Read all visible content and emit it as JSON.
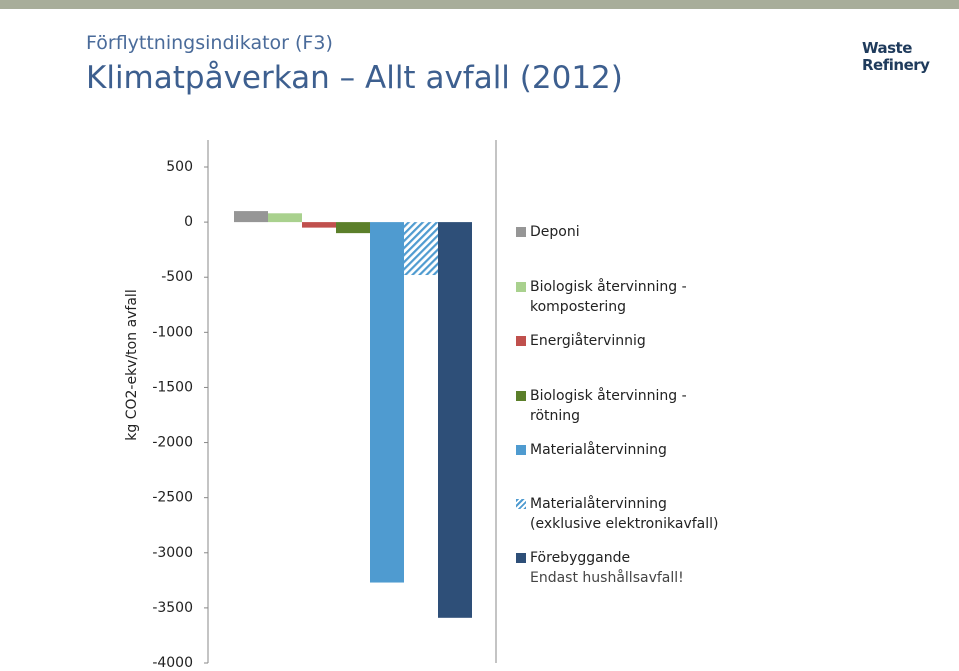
{
  "header": {
    "subtitle": "Förflyttningsindikator (F3)",
    "title": "Klimatpåverkan – Allt avfall (2012)",
    "logo_top": "Waste",
    "logo_bottom": "Refinery"
  },
  "chart_data": {
    "type": "bar",
    "y_label": "kg CO2-ekv/ton avfall",
    "series": [
      {
        "name": "Deponi",
        "color": "#969696",
        "values": [
          100
        ]
      },
      {
        "name": "Biologisk återvinning - kompostering",
        "color": "#a9d18e",
        "values": [
          80
        ]
      },
      {
        "name": "Energiåtervinnig",
        "color": "#c0504d",
        "values": [
          -50
        ]
      },
      {
        "name": "Biologisk återvinning - rötning",
        "color": "#5b7f2a",
        "values": [
          -100
        ]
      },
      {
        "name": "Materialåtervinning",
        "color": "#4f9bd0",
        "values": [
          -3270
        ]
      },
      {
        "name": "Materialåtervinning (exklusive elektronikavfall)",
        "color": "#4f9bd0",
        "pattern": "hatch",
        "values": [
          -480
        ]
      },
      {
        "name": "Förebyggande",
        "color": "#2e4f78",
        "values": [
          -3590
        ]
      }
    ],
    "annotation": "Endast hushållsavfall!",
    "ylim": [
      -4000,
      500
    ],
    "yticks": [
      500,
      0,
      -500,
      -1000,
      -1500,
      -2000,
      -2500,
      -3000,
      -3500,
      -4000
    ]
  }
}
